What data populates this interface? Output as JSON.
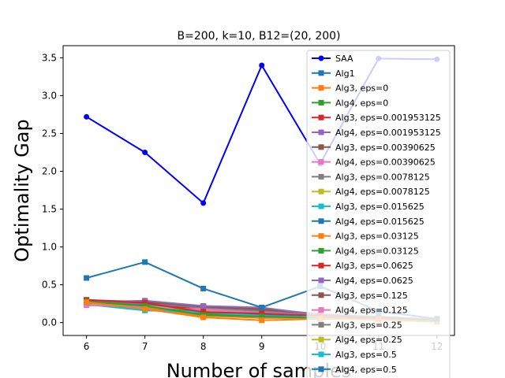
{
  "chart_data": {
    "type": "line",
    "title": "B=200, k=10, B12=(20, 200)",
    "xlabel": "Number of samples",
    "ylabel": "Optimality Gap",
    "x": [
      6,
      7,
      8,
      9,
      10,
      11,
      12
    ],
    "xlim": [
      5.6,
      12.3
    ],
    "ylim": [
      -0.17,
      3.66
    ],
    "xticks": [
      "6",
      "7",
      "8",
      "9",
      "10",
      "11",
      "12"
    ],
    "yticks": [
      "0.0",
      "0.5",
      "1.0",
      "1.5",
      "2.0",
      "2.5",
      "3.0",
      "3.5"
    ],
    "legend_position": "upper right",
    "series": [
      {
        "name": "SAA",
        "color": "#0000ff",
        "marker": "circle",
        "linewidth": 2,
        "values": [
          2.72,
          2.25,
          1.58,
          3.4,
          2.1,
          3.49,
          3.48
        ]
      },
      {
        "name": "Alg1",
        "color": "#1f77b4",
        "marker": "square",
        "linewidth": 2,
        "values": [
          0.59,
          0.8,
          0.45,
          0.2,
          0.48,
          0.15,
          0.05
        ]
      },
      {
        "name": "Alg3, eps=0",
        "color": "#ff7f0e",
        "marker": "square",
        "linewidth": 2,
        "values": [
          0.27,
          0.18,
          0.07,
          0.03,
          0.05,
          0.04,
          0.01
        ]
      },
      {
        "name": "Alg4, eps=0",
        "color": "#2ca02c",
        "marker": "square",
        "linewidth": 2,
        "values": [
          0.28,
          0.22,
          0.1,
          0.08,
          0.06,
          0.05,
          0.03
        ]
      },
      {
        "name": "Alg3, eps=0.001953125",
        "color": "#d62728",
        "marker": "square",
        "linewidth": 2,
        "values": [
          0.3,
          0.26,
          0.14,
          0.12,
          0.09,
          0.06,
          0.03
        ]
      },
      {
        "name": "Alg4, eps=0.001953125",
        "color": "#9467bd",
        "marker": "square",
        "linewidth": 2,
        "values": [
          0.27,
          0.29,
          0.22,
          0.2,
          0.1,
          0.07,
          0.04
        ]
      },
      {
        "name": "Alg3, eps=0.00390625",
        "color": "#8c564b",
        "marker": "square",
        "linewidth": 2,
        "values": [
          0.29,
          0.28,
          0.21,
          0.18,
          0.11,
          0.07,
          0.04
        ]
      },
      {
        "name": "Alg4, eps=0.00390625",
        "color": "#e377c2",
        "marker": "square",
        "linewidth": 2,
        "values": [
          0.23,
          0.21,
          0.17,
          0.13,
          0.09,
          0.06,
          0.05
        ]
      },
      {
        "name": "Alg3, eps=0.0078125",
        "color": "#7f7f7f",
        "marker": "square",
        "linewidth": 2,
        "values": [
          0.26,
          0.25,
          0.2,
          0.15,
          0.1,
          0.08,
          0.04
        ]
      },
      {
        "name": "Alg4, eps=0.0078125",
        "color": "#bcbd22",
        "marker": "square",
        "linewidth": 2,
        "values": [
          0.25,
          0.22,
          0.16,
          0.14,
          0.08,
          0.06,
          0.03
        ]
      },
      {
        "name": "Alg3, eps=0.015625",
        "color": "#17becf",
        "marker": "square",
        "linewidth": 2,
        "values": [
          0.24,
          0.16,
          0.14,
          0.09,
          0.07,
          0.05,
          0.03
        ]
      },
      {
        "name": "Alg4, eps=0.015625",
        "color": "#1f77b4",
        "marker": "square",
        "linewidth": 2,
        "values": [
          0.26,
          0.23,
          0.15,
          0.1,
          0.07,
          0.05,
          0.04
        ]
      },
      {
        "name": "Alg3, eps=0.03125",
        "color": "#ff7f0e",
        "marker": "square",
        "linewidth": 2,
        "values": [
          0.27,
          0.2,
          0.09,
          0.06,
          0.06,
          0.04,
          0.02
        ]
      },
      {
        "name": "Alg4, eps=0.03125",
        "color": "#2ca02c",
        "marker": "square",
        "linewidth": 2,
        "values": [
          0.28,
          0.24,
          0.12,
          0.09,
          0.07,
          0.05,
          0.03
        ]
      },
      {
        "name": "Alg3, eps=0.0625",
        "color": "#d62728",
        "marker": "square",
        "linewidth": 2,
        "values": [
          0.3,
          0.27,
          0.16,
          0.13,
          0.09,
          0.06,
          0.04
        ]
      },
      {
        "name": "Alg4, eps=0.0625",
        "color": "#9467bd",
        "marker": "square",
        "linewidth": 2,
        "values": [
          0.26,
          0.28,
          0.21,
          0.19,
          0.11,
          0.07,
          0.04
        ]
      },
      {
        "name": "Alg3, eps=0.125",
        "color": "#8c564b",
        "marker": "square",
        "linewidth": 2,
        "values": [
          0.29,
          0.27,
          0.2,
          0.17,
          0.1,
          0.07,
          0.04
        ]
      },
      {
        "name": "Alg4, eps=0.125",
        "color": "#e377c2",
        "marker": "square",
        "linewidth": 2,
        "values": [
          0.23,
          0.22,
          0.18,
          0.14,
          0.09,
          0.06,
          0.05
        ]
      },
      {
        "name": "Alg3, eps=0.25",
        "color": "#7f7f7f",
        "marker": "square",
        "linewidth": 2,
        "values": [
          0.25,
          0.24,
          0.19,
          0.15,
          0.1,
          0.07,
          0.04
        ]
      },
      {
        "name": "Alg4, eps=0.25",
        "color": "#bcbd22",
        "marker": "square",
        "linewidth": 2,
        "values": [
          0.25,
          0.21,
          0.16,
          0.13,
          0.08,
          0.06,
          0.03
        ]
      },
      {
        "name": "Alg3, eps=0.5",
        "color": "#17becf",
        "marker": "square",
        "linewidth": 2,
        "values": [
          0.24,
          0.17,
          0.13,
          0.09,
          0.07,
          0.05,
          0.03
        ]
      },
      {
        "name": "Alg4, eps=0.5",
        "color": "#1f77b4",
        "marker": "square",
        "linewidth": 2,
        "values": [
          0.26,
          0.22,
          0.14,
          0.1,
          0.07,
          0.05,
          0.04
        ]
      }
    ]
  }
}
